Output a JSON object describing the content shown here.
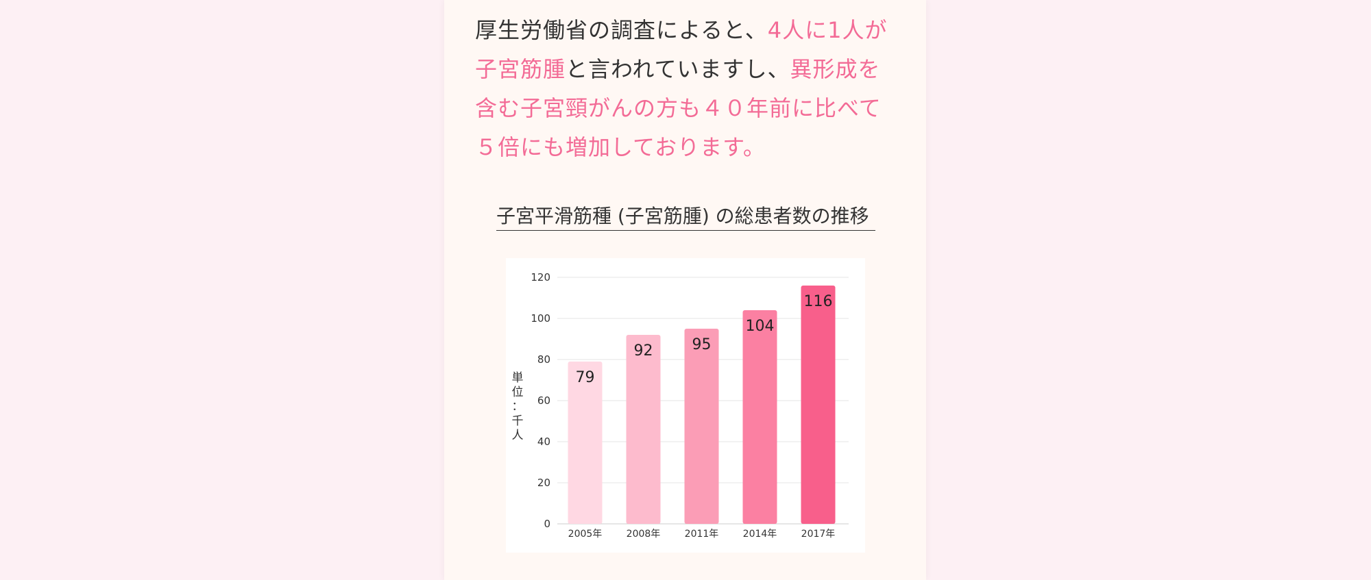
{
  "intro": {
    "line1_normal": "厚生労働省の調査によると、",
    "line1_highlight": "4人に1人が",
    "line2_highlight": "子宮筋腫",
    "line2_normal": "と言われていますし、",
    "line2_highlight2": "異形成を",
    "line3_highlight": "含む子宮頸がんの方も４０年前に比べて",
    "line4_highlight": "５倍にも増加しております。"
  },
  "colors": {
    "accent": "#f36b96",
    "panel_bg": "#fff8f4",
    "page_bg": "#fdf0f4",
    "text": "#333333"
  },
  "chart_data": {
    "type": "bar",
    "title": "子宮平滑筋種 (子宮筋腫) の総患者数の推移",
    "xlabel": "",
    "ylabel": "単位：千人",
    "ylim": [
      0,
      120
    ],
    "yticks": [
      0,
      20,
      40,
      60,
      80,
      100,
      120
    ],
    "categories": [
      "2005年",
      "2008年",
      "2011年",
      "2014年",
      "2017年"
    ],
    "values": [
      79,
      92,
      95,
      104,
      116
    ],
    "bar_colors": [
      "#ffd8e3",
      "#fdbbcd",
      "#fb9db6",
      "#fb80a2",
      "#f85f8b"
    ],
    "grid": true,
    "legend": "none"
  }
}
